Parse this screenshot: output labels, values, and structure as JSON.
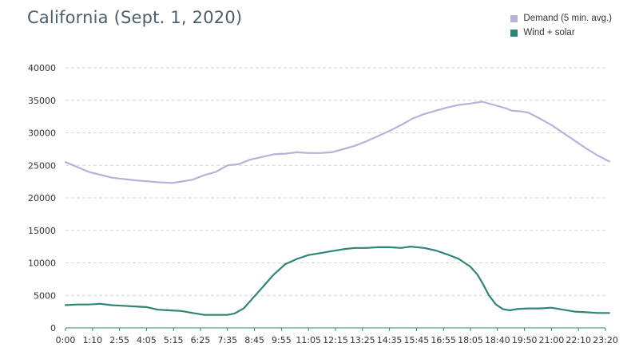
{
  "chart_data": {
    "type": "line",
    "title": "California (Sept. 1, 2020)",
    "xlabel": "",
    "ylabel": "",
    "ylim": [
      0,
      40000
    ],
    "yticks": [
      0,
      5000,
      10000,
      15000,
      20000,
      25000,
      30000,
      35000,
      40000
    ],
    "xticks": [
      "0:00",
      "1:10",
      "2:55",
      "4:05",
      "5:15",
      "6:25",
      "7:35",
      "8:45",
      "9:55",
      "11:05",
      "12:15",
      "13:25",
      "14:35",
      "15:45",
      "16:55",
      "18:05",
      "18:40",
      "19:50",
      "21:00",
      "22:10",
      "23:20"
    ],
    "grid": "horizontal dashed",
    "legend_position": "top-right",
    "series": [
      {
        "name": "Demand (5 min. avg.)",
        "color": "#b9b1d9",
        "points": [
          [
            0.0,
            25500
          ],
          [
            1.0,
            24000
          ],
          [
            2.0,
            23100
          ],
          [
            3.0,
            22700
          ],
          [
            4.0,
            22400
          ],
          [
            4.6,
            22300
          ],
          [
            5.0,
            22500
          ],
          [
            5.5,
            22800
          ],
          [
            6.0,
            23500
          ],
          [
            6.5,
            24000
          ],
          [
            7.0,
            25000
          ],
          [
            7.5,
            25200
          ],
          [
            8.0,
            25900
          ],
          [
            8.5,
            26300
          ],
          [
            9.0,
            26700
          ],
          [
            9.5,
            26800
          ],
          [
            10.0,
            27000
          ],
          [
            10.5,
            26900
          ],
          [
            11.0,
            26900
          ],
          [
            11.5,
            27000
          ],
          [
            12.0,
            27500
          ],
          [
            12.5,
            28000
          ],
          [
            13.0,
            28700
          ],
          [
            13.5,
            29500
          ],
          [
            14.0,
            30300
          ],
          [
            14.5,
            31200
          ],
          [
            15.0,
            32200
          ],
          [
            15.5,
            32900
          ],
          [
            16.0,
            33400
          ],
          [
            16.5,
            33900
          ],
          [
            17.0,
            34300
          ],
          [
            17.5,
            34500
          ],
          [
            18.0,
            34800
          ],
          [
            18.2,
            34600
          ],
          [
            18.5,
            34300
          ],
          [
            19.0,
            33800
          ],
          [
            19.3,
            33400
          ],
          [
            19.7,
            33300
          ],
          [
            20.0,
            33100
          ],
          [
            20.5,
            32200
          ],
          [
            21.0,
            31200
          ],
          [
            21.5,
            30000
          ],
          [
            22.0,
            28800
          ],
          [
            22.5,
            27600
          ],
          [
            23.0,
            26500
          ],
          [
            23.5,
            25600
          ]
        ]
      },
      {
        "name": "Wind + solar",
        "color": "#2e8577",
        "points": [
          [
            0.0,
            3500
          ],
          [
            0.5,
            3600
          ],
          [
            1.0,
            3600
          ],
          [
            1.5,
            3700
          ],
          [
            2.0,
            3500
          ],
          [
            2.5,
            3400
          ],
          [
            3.0,
            3300
          ],
          [
            3.5,
            3200
          ],
          [
            4.0,
            2800
          ],
          [
            4.5,
            2700
          ],
          [
            5.0,
            2600
          ],
          [
            5.5,
            2300
          ],
          [
            6.0,
            2000
          ],
          [
            6.5,
            2000
          ],
          [
            7.0,
            2000
          ],
          [
            7.3,
            2200
          ],
          [
            7.7,
            3000
          ],
          [
            8.0,
            4200
          ],
          [
            8.5,
            6200
          ],
          [
            9.0,
            8200
          ],
          [
            9.5,
            9800
          ],
          [
            10.0,
            10600
          ],
          [
            10.5,
            11200
          ],
          [
            11.0,
            11500
          ],
          [
            11.5,
            11800
          ],
          [
            12.0,
            12100
          ],
          [
            12.5,
            12300
          ],
          [
            13.0,
            12300
          ],
          [
            13.5,
            12400
          ],
          [
            14.0,
            12400
          ],
          [
            14.5,
            12300
          ],
          [
            14.9,
            12500
          ],
          [
            15.5,
            12300
          ],
          [
            16.0,
            11900
          ],
          [
            16.5,
            11300
          ],
          [
            17.0,
            10600
          ],
          [
            17.5,
            9400
          ],
          [
            17.8,
            8200
          ],
          [
            18.0,
            7000
          ],
          [
            18.3,
            5000
          ],
          [
            18.6,
            3600
          ],
          [
            18.9,
            2900
          ],
          [
            19.2,
            2700
          ],
          [
            19.5,
            2900
          ],
          [
            20.0,
            3000
          ],
          [
            20.5,
            3000
          ],
          [
            21.0,
            3100
          ],
          [
            21.5,
            2800
          ],
          [
            22.0,
            2500
          ],
          [
            22.5,
            2400
          ],
          [
            23.0,
            2300
          ],
          [
            23.5,
            2300
          ]
        ]
      }
    ]
  }
}
